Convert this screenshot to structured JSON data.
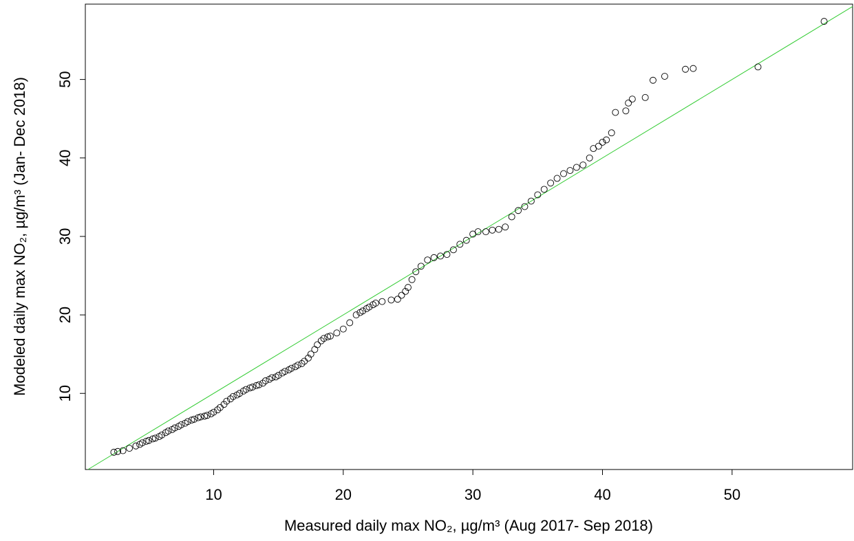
{
  "chart_data": {
    "type": "scatter",
    "xlabel": "Measured daily max NO₂, µg/m³ (Aug 2017- Sep 2018)",
    "ylabel": "Modeled daily max NO₂, µg/m³ (Jan- Dec 2018)",
    "x": [
      2.3,
      2.6,
      3,
      3.5,
      4,
      4.3,
      4.5,
      4.8,
      5,
      5.3,
      5.5,
      5.8,
      6,
      6.3,
      6.5,
      6.8,
      7,
      7.3,
      7.5,
      7.8,
      8,
      8.3,
      8.5,
      8.8,
      9,
      9.3,
      9.5,
      9.8,
      10,
      10.3,
      10.5,
      10.8,
      11,
      11.3,
      11.5,
      11.8,
      12,
      12.3,
      12.5,
      12.8,
      13,
      13.3,
      13.5,
      13.8,
      14,
      14.3,
      14.5,
      14.8,
      15,
      15.3,
      15.5,
      15.8,
      16,
      16.3,
      16.5,
      16.8,
      17,
      17.3,
      17.5,
      17.8,
      18,
      18.3,
      18.5,
      18.8,
      19,
      19.5,
      20,
      20.5,
      21,
      21.3,
      21.5,
      21.8,
      22,
      22.3,
      22.5,
      23,
      23.7,
      24.2,
      24.5,
      24.8,
      25,
      25.3,
      25.6,
      26,
      26.5,
      27,
      27.5,
      28,
      28.5,
      29,
      29.5,
      30,
      30.4,
      31,
      31.5,
      32,
      32.5,
      33,
      33.5,
      34,
      34.5,
      35,
      35.5,
      36,
      36.5,
      37,
      37.5,
      38,
      38.5,
      39,
      39.3,
      39.7,
      40,
      40.3,
      40.7,
      41,
      41.8,
      42,
      42.3,
      43.3,
      43.9,
      44.8,
      46.4,
      47,
      52,
      57.1
    ],
    "y": [
      2.5,
      2.6,
      2.7,
      3,
      3.3,
      3.5,
      3.7,
      3.9,
      4,
      4.2,
      4.3,
      4.5,
      4.7,
      5,
      5.2,
      5.4,
      5.6,
      5.8,
      6,
      6.2,
      6.4,
      6.6,
      6.7,
      6.9,
      7,
      7.1,
      7.2,
      7.4,
      7.6,
      7.9,
      8.2,
      8.6,
      9,
      9.3,
      9.6,
      9.8,
      10,
      10.3,
      10.5,
      10.7,
      10.8,
      11,
      11.1,
      11.3,
      11.6,
      11.8,
      12,
      12.1,
      12.3,
      12.6,
      12.8,
      13,
      13.2,
      13.4,
      13.6,
      13.8,
      14.1,
      14.5,
      15,
      15.6,
      16.2,
      16.7,
      17,
      17.2,
      17.3,
      17.7,
      18.2,
      19,
      20,
      20.3,
      20.5,
      20.8,
      21,
      21.3,
      21.5,
      21.7,
      21.9,
      22,
      22.5,
      23,
      23.5,
      24.5,
      25.5,
      26.2,
      27,
      27.3,
      27.5,
      27.7,
      28.3,
      29,
      29.5,
      30.3,
      30.6,
      30.6,
      30.8,
      30.9,
      31.2,
      32.5,
      33.3,
      33.8,
      34.5,
      35.3,
      36,
      36.8,
      37.4,
      38,
      38.4,
      38.8,
      39.1,
      40,
      41.2,
      41.5,
      42,
      42.3,
      43.2,
      45.8,
      46,
      47,
      47.5,
      47.7,
      49.9,
      50.4,
      51.3,
      51.4,
      51.6,
      57.4
    ],
    "marker_color": "#000000",
    "identity_line_color": "#33cc33",
    "xlim": [
      0.1,
      59.3
    ],
    "ylim": [
      0.3,
      59.6
    ],
    "xticks": [
      10,
      20,
      30,
      40,
      50
    ],
    "yticks": [
      10,
      20,
      30,
      40,
      50
    ]
  }
}
